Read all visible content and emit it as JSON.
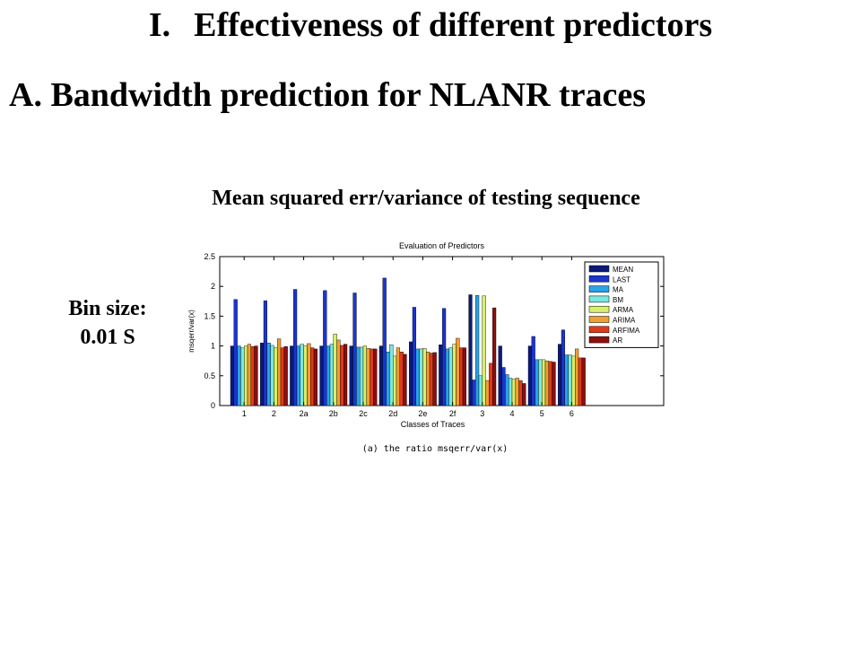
{
  "slide": {
    "heading_number": "I.",
    "heading_text": "Effectiveness of different predictors",
    "subheading": "A. Bandwidth prediction for NLANR traces",
    "subtitle": "Mean squared err/variance of testing sequence",
    "bin_label": "Bin size:",
    "bin_value": "0.01 S",
    "caption": "(a) the ratio msqerr/var(x)"
  },
  "chart_data": {
    "type": "bar",
    "title": "Evaluation of Predictors",
    "xlabel": "Classes of Traces",
    "ylabel": "msqerr/var(x)",
    "ylim": [
      0,
      2.5
    ],
    "yticks": [
      0,
      0.5,
      1,
      1.5,
      2,
      2.5
    ],
    "grid": false,
    "legend_position": "top-right",
    "categories": [
      "1",
      "2",
      "2a",
      "2b",
      "2c",
      "2d",
      "2e",
      "2f",
      "3",
      "4",
      "5",
      "6"
    ],
    "series": [
      {
        "name": "MEAN",
        "color": "#0a1a7a",
        "values": [
          1.0,
          1.05,
          1.0,
          1.0,
          1.0,
          1.0,
          1.07,
          1.02,
          1.86,
          1.0,
          1.0,
          1.03
        ]
      },
      {
        "name": "LAST",
        "color": "#1a35d0",
        "values": [
          1.78,
          1.76,
          1.95,
          1.93,
          1.89,
          2.14,
          1.65,
          1.63,
          0.43,
          0.64,
          1.16,
          1.27
        ]
      },
      {
        "name": "MA",
        "color": "#2aa2e8",
        "values": [
          1.0,
          1.05,
          1.0,
          1.0,
          0.98,
          0.9,
          0.95,
          0.95,
          1.85,
          0.52,
          0.77,
          0.85
        ]
      },
      {
        "name": "BM",
        "color": "#7ae8e0",
        "values": [
          0.97,
          1.01,
          1.03,
          1.03,
          0.98,
          1.02,
          0.95,
          0.97,
          0.5,
          0.46,
          0.77,
          0.85
        ]
      },
      {
        "name": "ARMA",
        "color": "#d8ef6a",
        "values": [
          1.0,
          0.97,
          1.0,
          1.2,
          1.0,
          0.83,
          0.96,
          1.03,
          1.84,
          0.44,
          0.77,
          0.83
        ]
      },
      {
        "name": "ARIMA",
        "color": "#f0a030",
        "values": [
          1.03,
          1.12,
          1.04,
          1.1,
          0.96,
          0.97,
          0.9,
          1.13,
          0.42,
          0.46,
          0.75,
          0.95
        ]
      },
      {
        "name": "ARFIMA",
        "color": "#e03a1a",
        "values": [
          0.99,
          0.97,
          0.97,
          1.01,
          0.95,
          0.9,
          0.88,
          0.97,
          0.71,
          0.42,
          0.74,
          0.8
        ]
      },
      {
        "name": "AR",
        "color": "#8a0f10",
        "values": [
          1.0,
          0.99,
          0.95,
          1.03,
          0.95,
          0.86,
          0.89,
          0.97,
          1.64,
          0.37,
          0.73,
          0.8
        ]
      }
    ]
  }
}
